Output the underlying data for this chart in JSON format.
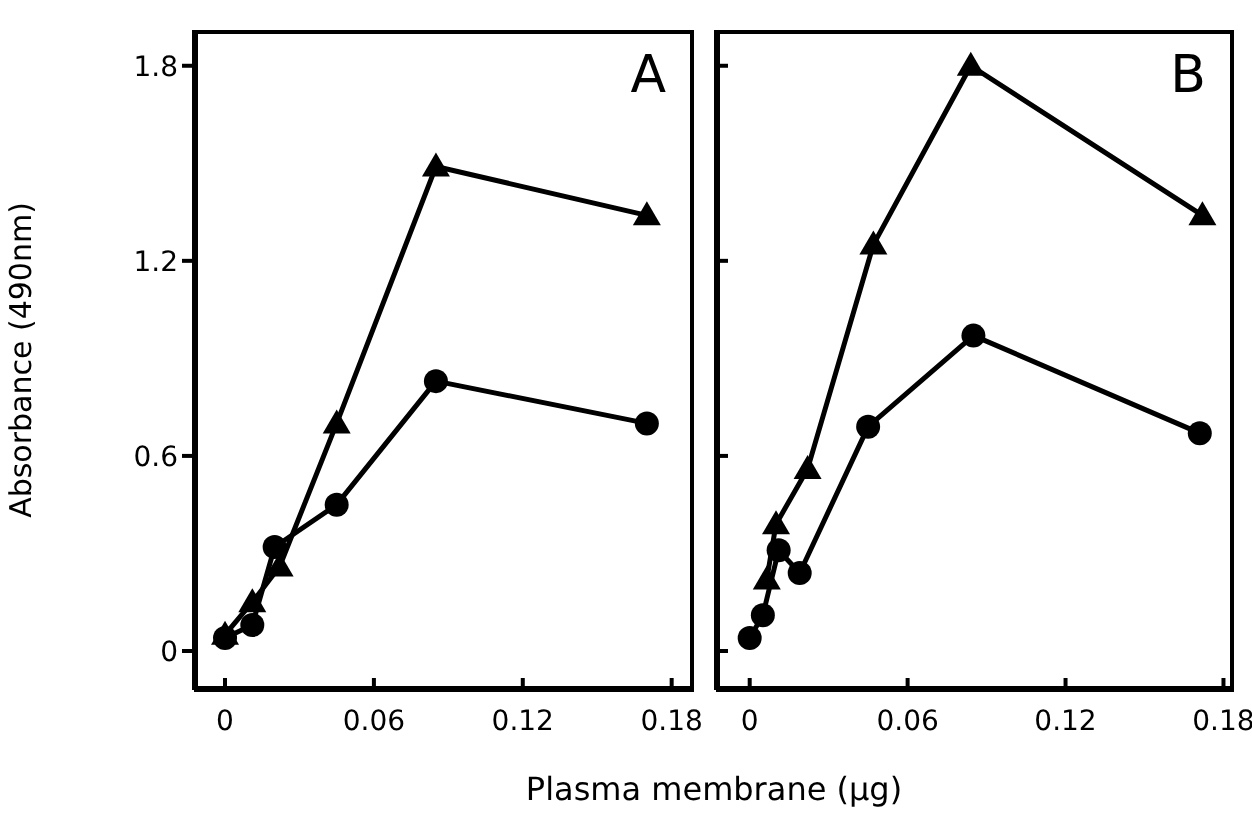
{
  "chart_data": [
    {
      "type": "line",
      "ylabel": "Absorbance (490nm)",
      "xlabel": "Plasma membrane (µg)",
      "annotations": [
        "A"
      ],
      "xlim": [
        -0.0125,
        0.189
      ],
      "xticks": [
        0,
        0.06,
        0.12,
        0.18
      ],
      "ylim": [
        -0.12,
        1.91
      ],
      "yticks": [
        0,
        0.6,
        1.2,
        1.8
      ],
      "line_style": "solid",
      "series": [
        {
          "marker": "triangle",
          "color": "#000000",
          "x": [
            0,
            0.011,
            0.022,
            0.045,
            0.085,
            0.17
          ],
          "values": [
            0.05,
            0.15,
            0.26,
            0.7,
            1.49,
            1.34
          ]
        },
        {
          "marker": "circle",
          "color": "#000000",
          "x": [
            0,
            0.011,
            0.02,
            0.045,
            0.085,
            0.17
          ],
          "values": [
            0.04,
            0.08,
            0.32,
            0.45,
            0.83,
            0.7
          ]
        }
      ]
    },
    {
      "type": "line",
      "annotations": [
        "B"
      ],
      "xlim": [
        -0.0128,
        0.184
      ],
      "xticks": [
        0,
        0.06,
        0.12,
        0.18
      ],
      "ylim": [
        -0.12,
        1.91
      ],
      "yticks": [
        0,
        0.6,
        1.2,
        1.8
      ],
      "tick_labels": "x",
      "line_style": "solid",
      "series": [
        {
          "marker": "triangle",
          "color": "#000000",
          "x": [
            0.0065,
            0.01,
            0.022,
            0.047,
            0.084,
            0.172
          ],
          "values": [
            0.22,
            0.39,
            0.56,
            1.25,
            1.8,
            1.34
          ]
        },
        {
          "marker": "circle",
          "color": "#000000",
          "x": [
            0,
            0.005,
            0.011,
            0.019,
            0.045,
            0.085,
            0.171
          ],
          "values": [
            0.04,
            0.11,
            0.31,
            0.24,
            0.69,
            0.97,
            0.67
          ]
        }
      ]
    }
  ]
}
